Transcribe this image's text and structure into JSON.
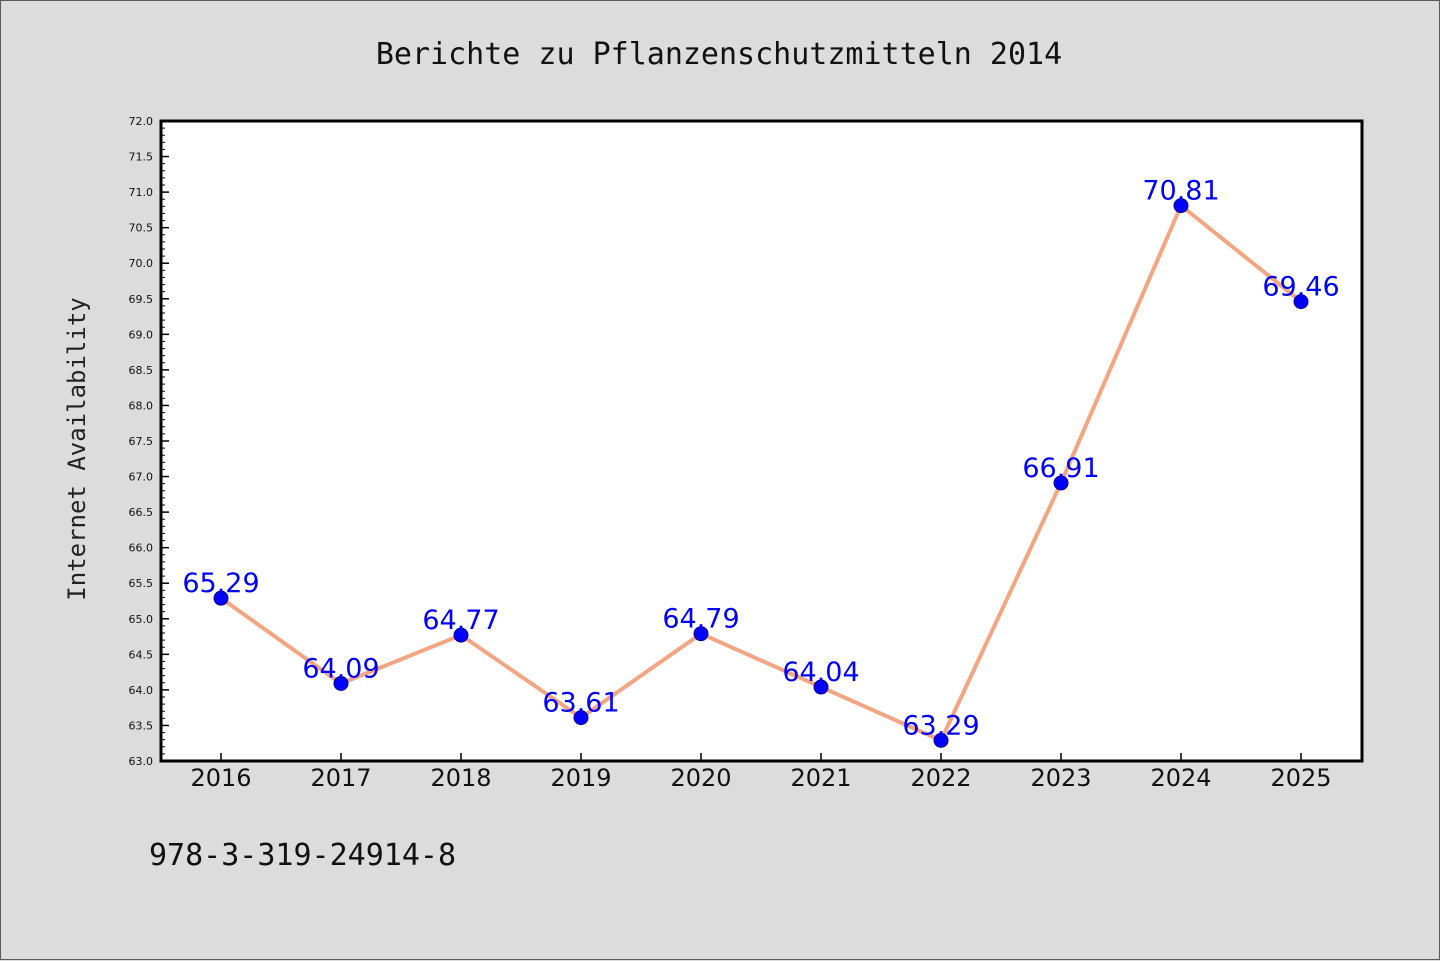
{
  "chart_data": {
    "type": "line",
    "title": "Berichte zu Pflanzenschutzmitteln 2014",
    "xlabel": "",
    "ylabel": "Internet Availability",
    "categories": [
      "2016",
      "2017",
      "2018",
      "2019",
      "2020",
      "2021",
      "2022",
      "2023",
      "2024",
      "2025"
    ],
    "values": [
      65.29,
      64.09,
      64.77,
      63.61,
      64.79,
      64.04,
      63.29,
      66.91,
      70.81,
      69.46
    ],
    "data_labels": [
      "65.29",
      "64.09",
      "64.77",
      "63.61",
      "64.79",
      "64.04",
      "63.29",
      "66.91",
      "70.81",
      "69.46"
    ],
    "ylim": [
      63.0,
      72.0
    ],
    "yticks": [
      "63.0",
      "63.5",
      "64.0",
      "64.5",
      "65.0",
      "65.5",
      "66.0",
      "66.5",
      "67.0",
      "67.5",
      "68.0",
      "68.5",
      "69.0",
      "69.5",
      "70.0",
      "70.5",
      "71.0",
      "71.5",
      "72.0"
    ],
    "grid": false,
    "legend": "none",
    "colors": {
      "line": "#f4a582",
      "marker": "#0000ff",
      "data_label": "#0000ff",
      "background": "#dcdcdc",
      "plot_area": "#ffffff"
    }
  },
  "footer": {
    "isbn": "978-3-319-24914-8"
  }
}
